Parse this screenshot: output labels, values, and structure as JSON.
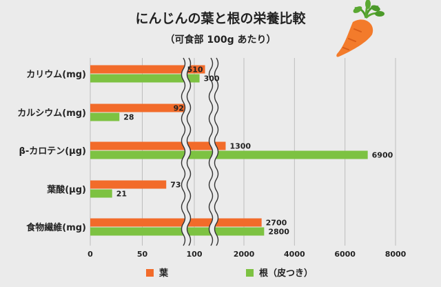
{
  "colors": {
    "leaf": "#f26b2a",
    "root": "#7dc242",
    "grid": "#bdbdbd",
    "background": "#ebebeb"
  },
  "icons": [
    "carrot-icon"
  ],
  "chart_data": {
    "type": "bar",
    "orientation": "horizontal",
    "title": "にんじんの葉と根の栄養比較",
    "subtitle": "（可食部 100g あたり）",
    "categories": [
      "カリウム(mg)",
      "カルシウム(mg)",
      "β-カロテン(μg)",
      "葉酸(μg)",
      "食物繊維(mg)"
    ],
    "series": [
      {
        "name": "葉",
        "values": [
          510,
          92,
          1300,
          73,
          2700
        ],
        "color": "#f26b2a"
      },
      {
        "name": "根（皮つき）",
        "values": [
          300,
          28,
          6900,
          21,
          2800
        ],
        "color": "#7dc242"
      }
    ],
    "x_ticks": [
      "0",
      "50",
      "100",
      "2000",
      "4000",
      "6000",
      "8000"
    ],
    "axis_break": "between 100 and 2000 (two wavy break lines)",
    "grid": true,
    "legend": "bottom"
  }
}
